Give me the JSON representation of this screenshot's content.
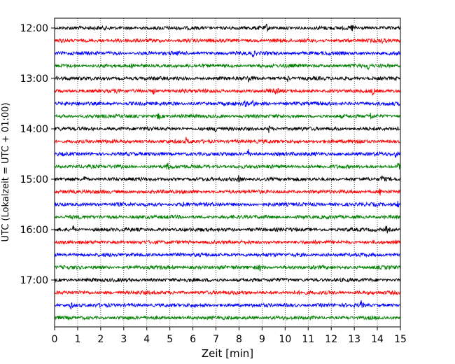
{
  "chart_data": {
    "type": "line",
    "title": "",
    "xlabel": "Zeit  [min]",
    "ylabel": "UTC (Lokalzeit = UTC + 01:00)",
    "xlim": [
      0,
      15
    ],
    "x_ticks": [
      "0",
      "1",
      "2",
      "3",
      "4",
      "5",
      "6",
      "7",
      "8",
      "9",
      "10",
      "11",
      "12",
      "13",
      "14",
      "15"
    ],
    "y_ticks": [
      "12:00",
      "13:00",
      "14:00",
      "15:00",
      "16:00",
      "17:00"
    ],
    "grid": "vertical dotted",
    "row_interval_min": 15,
    "color_cycle": [
      "#000000",
      "#ff0000",
      "#0000ff",
      "#008000"
    ],
    "series": [
      {
        "start": "12:00",
        "color": "#000000",
        "events": [
          9.2,
          12.9
        ]
      },
      {
        "start": "12:15",
        "color": "#ff0000",
        "events": [
          14.2
        ]
      },
      {
        "start": "12:30",
        "color": "#0000ff",
        "events": [
          8.6
        ]
      },
      {
        "start": "12:45",
        "color": "#008000",
        "events": [
          13.6
        ]
      },
      {
        "start": "13:00",
        "color": "#000000",
        "events": [
          8.4,
          10.1
        ]
      },
      {
        "start": "13:15",
        "color": "#ff0000",
        "events": [
          4.3,
          9.6,
          13.8
        ]
      },
      {
        "start": "13:30",
        "color": "#0000ff",
        "events": [
          8.3,
          8.6
        ]
      },
      {
        "start": "13:45",
        "color": "#008000",
        "events": [
          4.5,
          13.7
        ]
      },
      {
        "start": "14:00",
        "color": "#000000",
        "events": [
          7.0,
          9.3
        ]
      },
      {
        "start": "14:15",
        "color": "#ff0000",
        "events": [
          5.7,
          13.2
        ]
      },
      {
        "start": "14:30",
        "color": "#0000ff",
        "events": [
          8.4,
          14.8
        ]
      },
      {
        "start": "14:45",
        "color": "#008000",
        "events": [
          4.9,
          14.9
        ]
      },
      {
        "start": "15:00",
        "color": "#000000",
        "events": [
          1.3,
          8.0,
          14.2
        ]
      },
      {
        "start": "15:15",
        "color": "#ff0000",
        "events": [
          14.1
        ]
      },
      {
        "start": "15:30",
        "color": "#0000ff",
        "events": [
          5.6,
          14.9
        ]
      },
      {
        "start": "15:45",
        "color": "#008000",
        "events": []
      },
      {
        "start": "16:00",
        "color": "#000000",
        "events": [
          0.8,
          14.4
        ]
      },
      {
        "start": "16:15",
        "color": "#ff0000",
        "events": []
      },
      {
        "start": "16:30",
        "color": "#0000ff",
        "events": []
      },
      {
        "start": "16:45",
        "color": "#008000",
        "events": [
          8.9
        ]
      },
      {
        "start": "17:00",
        "color": "#000000",
        "events": []
      },
      {
        "start": "17:15",
        "color": "#ff0000",
        "events": []
      },
      {
        "start": "17:30",
        "color": "#0000ff",
        "events": [
          0.7,
          13.3
        ]
      },
      {
        "start": "17:45",
        "color": "#008000",
        "events": []
      }
    ]
  }
}
